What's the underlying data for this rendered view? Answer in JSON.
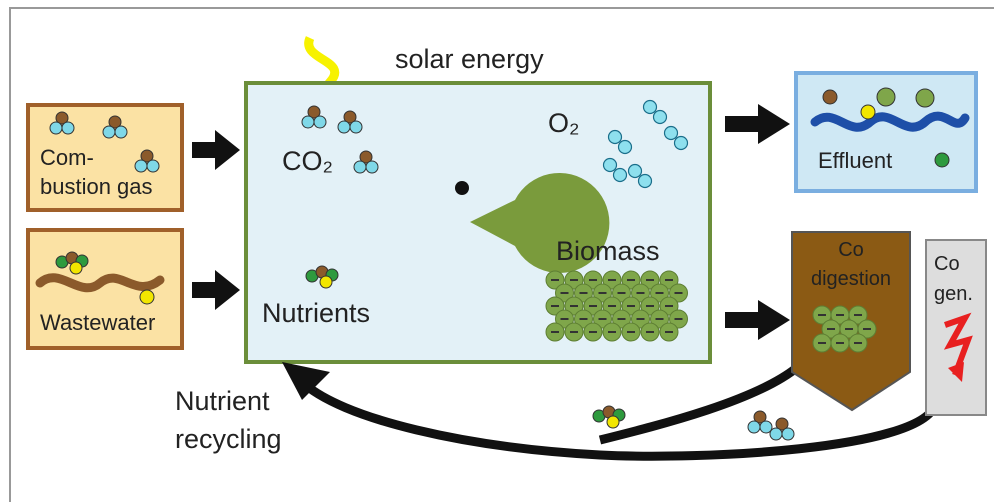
{
  "solar_energy": "solar energy",
  "inputs": {
    "combustion_gas": [
      "Com-",
      "bustion gas"
    ],
    "wastewater": "Wastewater"
  },
  "reactor": {
    "co2": "CO₂",
    "o2": "O₂",
    "nutrients": "Nutrients",
    "biomass": "Biomass"
  },
  "outputs": {
    "effluent": "Effluent",
    "co_digestion": [
      "Co",
      "digestion"
    ],
    "co_gen": [
      "Co",
      "gen."
    ]
  },
  "recycling": [
    "Nutrient",
    "recycling"
  ]
}
